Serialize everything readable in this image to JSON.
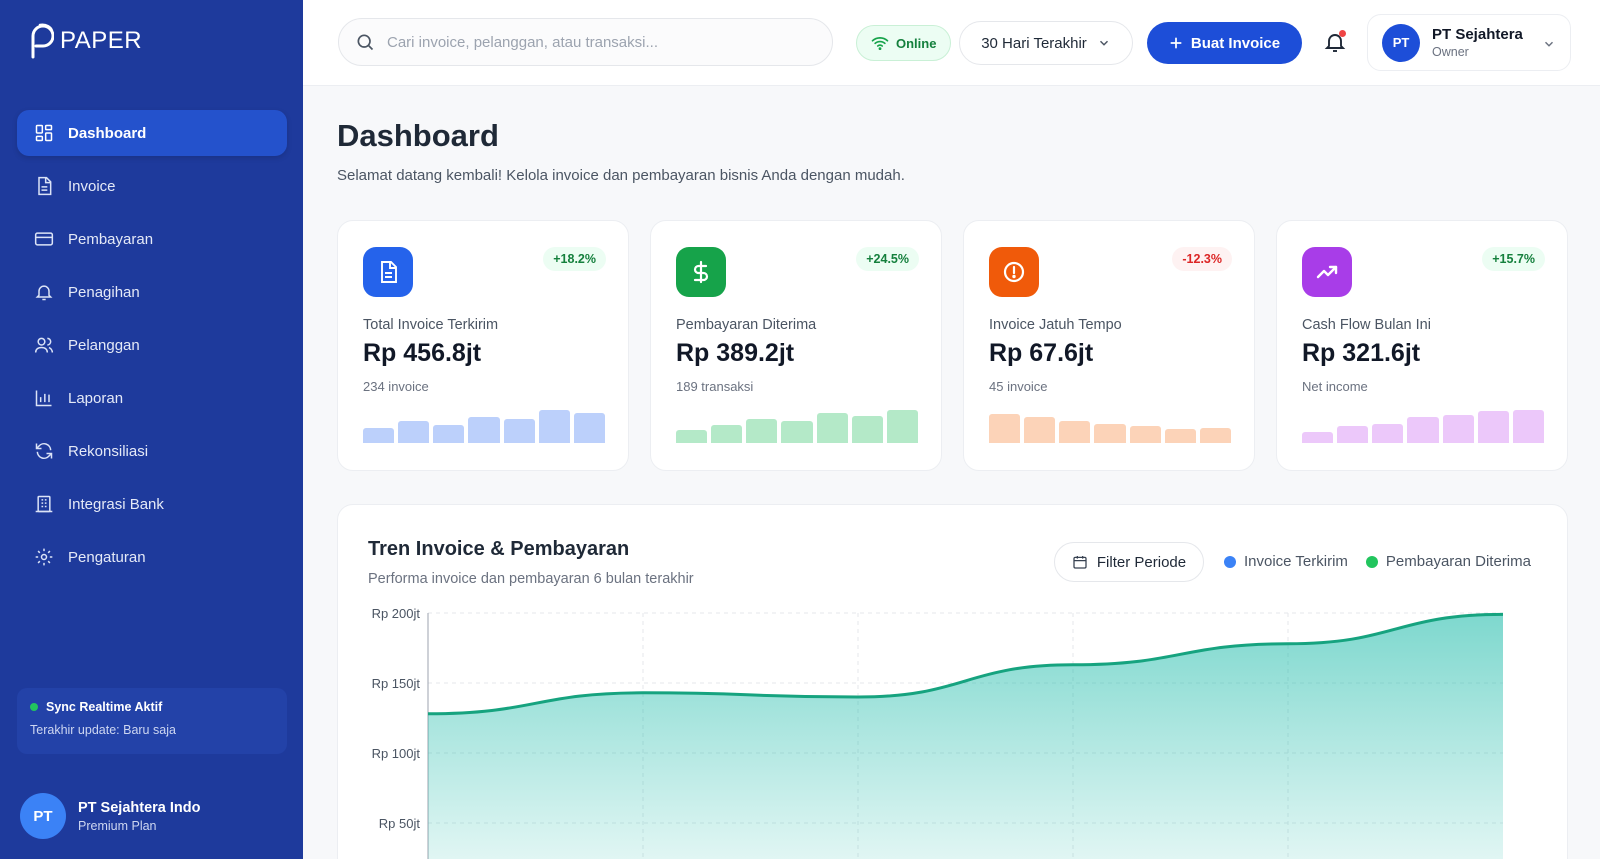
{
  "brand": {
    "name": "PAPER"
  },
  "sidebar": {
    "items": [
      {
        "label": "Dashboard",
        "icon": "dashboard-icon"
      },
      {
        "label": "Invoice",
        "icon": "document-icon"
      },
      {
        "label": "Pembayaran",
        "icon": "credit-card-icon"
      },
      {
        "label": "Penagihan",
        "icon": "bell-icon"
      },
      {
        "label": "Pelanggan",
        "icon": "users-icon"
      },
      {
        "label": "Laporan",
        "icon": "bar-chart-icon"
      },
      {
        "label": "Rekonsiliasi",
        "icon": "refresh-icon"
      },
      {
        "label": "Integrasi Bank",
        "icon": "bank-icon"
      },
      {
        "label": "Pengaturan",
        "icon": "gear-icon"
      }
    ],
    "sync": {
      "title": "Sync Realtime Aktif",
      "subtitle": "Terakhir update: Baru saja"
    },
    "company": {
      "initials": "PT",
      "name": "PT Sejahtera Indo",
      "plan": "Premium Plan"
    }
  },
  "header": {
    "search_placeholder": "Cari invoice, pelanggan, atau transaksi...",
    "status": "Online",
    "period": "30 Hari Terakhir",
    "create_button": "Buat Invoice",
    "user": {
      "initials": "PT",
      "name": "PT Sejahtera",
      "role": "Owner"
    }
  },
  "page": {
    "title": "Dashboard",
    "subtitle": "Selamat datang kembali! Kelola invoice dan pembayaran bisnis Anda dengan mudah."
  },
  "stats": [
    {
      "label": "Total Invoice Terkirim",
      "value": "Rp 456.8jt",
      "count": "234 invoice",
      "change": "+18.2%",
      "trend": "up",
      "icon": "document-icon",
      "color": "#2563eb",
      "bar_color": "#bcd0fb",
      "bars": [
        0.42,
        0.6,
        0.5,
        0.72,
        0.66,
        0.92,
        0.84
      ]
    },
    {
      "label": "Pembayaran Diterima",
      "value": "Rp 389.2jt",
      "count": "189 transaksi",
      "change": "+24.5%",
      "trend": "up",
      "icon": "dollar-icon",
      "color": "#16a34a",
      "bar_color": "#b4e9c8",
      "bars": [
        0.36,
        0.5,
        0.68,
        0.62,
        0.84,
        0.76,
        0.92
      ]
    },
    {
      "label": "Invoice Jatuh Tempo",
      "value": "Rp 67.6jt",
      "count": "45 invoice",
      "change": "-12.3%",
      "trend": "down",
      "icon": "alert-icon",
      "color": "#f05a0a",
      "bar_color": "#fcd3b8",
      "bars": [
        0.8,
        0.72,
        0.62,
        0.54,
        0.46,
        0.4,
        0.42
      ]
    },
    {
      "label": "Cash Flow Bulan Ini",
      "value": "Rp 321.6jt",
      "count": "Net income",
      "change": "+15.7%",
      "trend": "up",
      "icon": "trend-up-icon",
      "color": "#a83de8",
      "bar_color": "#ecc8fa",
      "bars": [
        0.3,
        0.46,
        0.52,
        0.72,
        0.78,
        0.88,
        0.92
      ]
    }
  ],
  "trend": {
    "title": "Tren Invoice & Pembayaran",
    "subtitle": "Performa invoice dan pembayaran 6 bulan terakhir",
    "filter_label": "Filter Periode"
  },
  "chart_data": {
    "type": "area",
    "series": [
      {
        "name": "Invoice Terkirim",
        "color": "#3b82f6",
        "values": []
      },
      {
        "name": "Pembayaran Diterima",
        "color": "#22c55e",
        "values": [
          128,
          143,
          140,
          163,
          178,
          199
        ]
      }
    ],
    "area_color": "#14b8a6",
    "yticks": [
      "Rp 200jt",
      "Rp 150jt",
      "Rp 100jt",
      "Rp 50jt"
    ],
    "ytick_values": [
      200,
      150,
      100,
      50
    ],
    "ylim": [
      0,
      200
    ],
    "grid": true,
    "legend_position": "top-right"
  }
}
